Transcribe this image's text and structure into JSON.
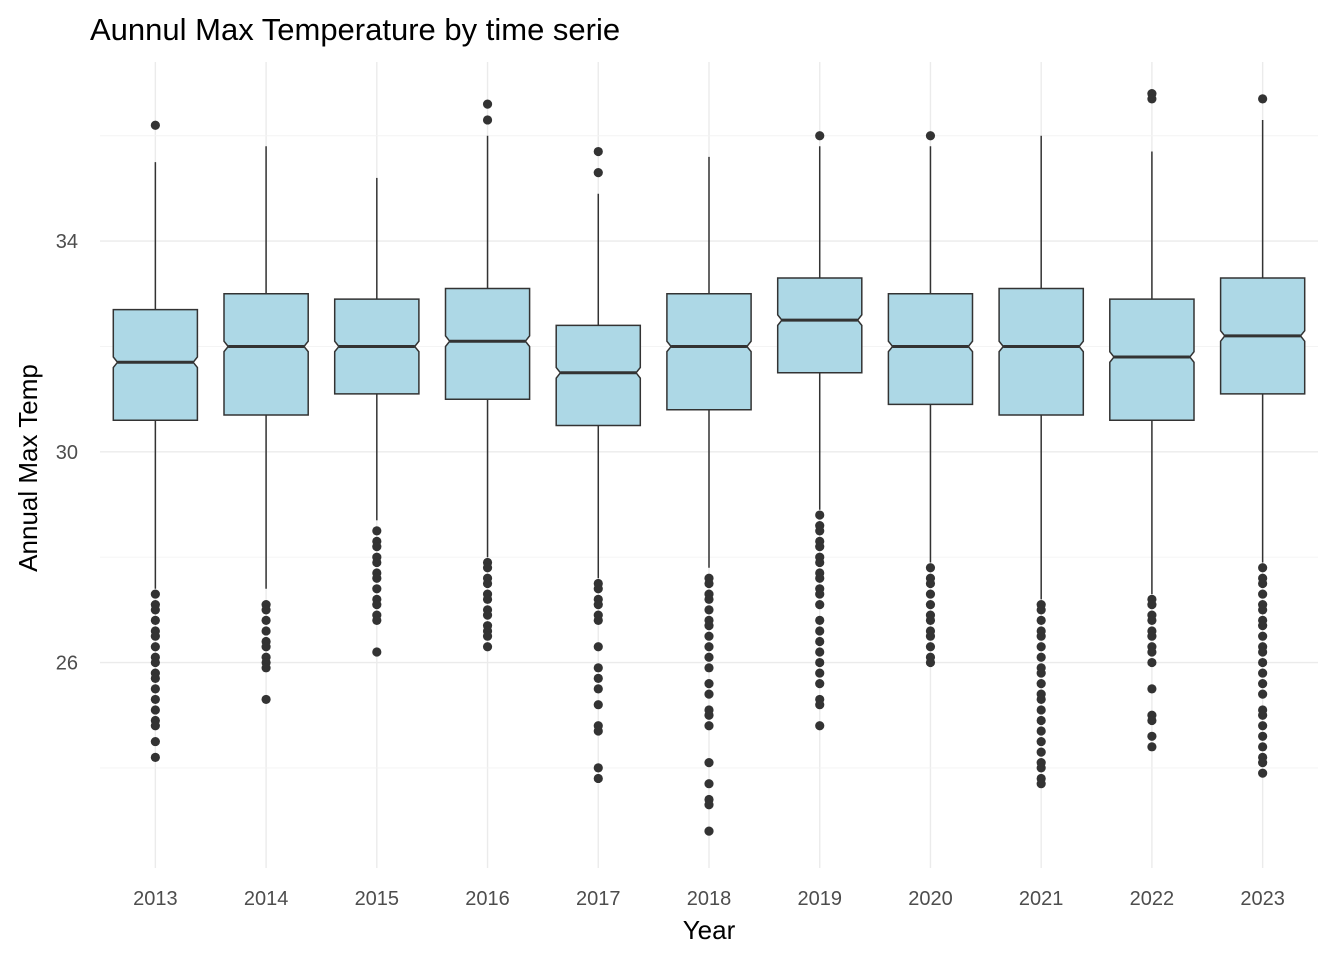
{
  "chart_data": {
    "type": "boxplot",
    "notched": true,
    "title": "Aunnul Max Temperature by time serie",
    "xlabel": "Year",
    "ylabel": "Annual Max Temp",
    "categories": [
      "2013",
      "2014",
      "2015",
      "2016",
      "2017",
      "2018",
      "2019",
      "2020",
      "2021",
      "2022",
      "2023"
    ],
    "y_ticks": [
      26,
      30,
      34
    ],
    "ylim": [
      22.1,
      37.4
    ],
    "grid": true,
    "legend": "none",
    "colors": {
      "box_fill": "#add8e6",
      "box_stroke": "#333333",
      "outlier": "#333333",
      "grid": "#ebebeb"
    },
    "boxes": [
      {
        "year": "2013",
        "lower_whisker": 27.4,
        "q1": 30.6,
        "median": 31.7,
        "q3": 32.7,
        "upper_whisker": 35.5,
        "notch_low": 31.6,
        "notch_high": 31.8,
        "outliers": [
          36.2,
          27.3,
          27.1,
          27.0,
          26.8,
          26.6,
          26.5,
          26.3,
          26.1,
          26.0,
          25.8,
          25.7,
          25.5,
          25.3,
          25.1,
          24.9,
          24.8,
          24.5,
          24.2
        ]
      },
      {
        "year": "2014",
        "lower_whisker": 27.4,
        "q1": 30.7,
        "median": 32.0,
        "q3": 33.0,
        "upper_whisker": 35.8,
        "notch_low": 31.9,
        "notch_high": 32.1,
        "outliers": [
          27.1,
          27.0,
          26.8,
          26.6,
          26.4,
          26.3,
          26.1,
          26.0,
          25.9,
          25.3
        ]
      },
      {
        "year": "2015",
        "lower_whisker": 28.7,
        "q1": 31.1,
        "median": 32.0,
        "q3": 32.9,
        "upper_whisker": 35.2,
        "notch_low": 31.9,
        "notch_high": 32.1,
        "outliers": [
          28.5,
          28.3,
          28.2,
          28.0,
          27.9,
          27.7,
          27.6,
          27.4,
          27.2,
          27.1,
          26.9,
          26.8,
          26.2
        ]
      },
      {
        "year": "2016",
        "lower_whisker": 28.0,
        "q1": 31.0,
        "median": 32.1,
        "q3": 33.1,
        "upper_whisker": 36.0,
        "notch_low": 32.0,
        "notch_high": 32.2,
        "outliers": [
          36.6,
          36.3,
          27.9,
          27.8,
          27.6,
          27.5,
          27.3,
          27.2,
          27.0,
          26.9,
          26.7,
          26.6,
          26.5,
          26.3
        ]
      },
      {
        "year": "2017",
        "lower_whisker": 27.6,
        "q1": 30.5,
        "median": 31.5,
        "q3": 32.4,
        "upper_whisker": 34.9,
        "notch_low": 31.4,
        "notch_high": 31.6,
        "outliers": [
          35.7,
          35.3,
          27.5,
          27.4,
          27.2,
          27.1,
          26.9,
          26.8,
          26.3,
          25.9,
          25.7,
          25.5,
          25.2,
          24.8,
          24.7,
          24.0,
          23.8
        ]
      },
      {
        "year": "2018",
        "lower_whisker": 27.8,
        "q1": 30.8,
        "median": 32.0,
        "q3": 33.0,
        "upper_whisker": 35.6,
        "notch_low": 31.9,
        "notch_high": 32.1,
        "outliers": [
          27.6,
          27.5,
          27.3,
          27.2,
          27.0,
          26.8,
          26.7,
          26.5,
          26.3,
          26.1,
          25.9,
          25.6,
          25.4,
          25.1,
          25.0,
          24.8,
          24.1,
          23.7,
          23.4,
          23.3,
          22.8
        ]
      },
      {
        "year": "2019",
        "lower_whisker": 28.9,
        "q1": 31.5,
        "median": 32.5,
        "q3": 33.3,
        "upper_whisker": 35.8,
        "notch_low": 32.4,
        "notch_high": 32.6,
        "outliers": [
          36.0,
          28.8,
          28.6,
          28.5,
          28.3,
          28.2,
          28.0,
          27.9,
          27.7,
          27.6,
          27.4,
          27.3,
          27.1,
          26.8,
          26.6,
          26.4,
          26.2,
          26.0,
          25.8,
          25.6,
          25.3,
          25.2,
          24.8
        ]
      },
      {
        "year": "2020",
        "lower_whisker": 27.9,
        "q1": 30.9,
        "median": 32.0,
        "q3": 33.0,
        "upper_whisker": 35.8,
        "notch_low": 31.9,
        "notch_high": 32.1,
        "outliers": [
          36.0,
          27.8,
          27.6,
          27.5,
          27.3,
          27.1,
          26.9,
          26.8,
          26.6,
          26.5,
          26.3,
          26.1,
          26.0
        ]
      },
      {
        "year": "2021",
        "lower_whisker": 27.2,
        "q1": 30.7,
        "median": 32.0,
        "q3": 33.1,
        "upper_whisker": 36.0,
        "notch_low": 31.9,
        "notch_high": 32.1,
        "outliers": [
          27.1,
          27.0,
          26.8,
          26.6,
          26.5,
          26.3,
          26.1,
          25.9,
          25.8,
          25.6,
          25.4,
          25.3,
          25.1,
          24.9,
          24.7,
          24.5,
          24.3,
          24.1,
          24.0,
          23.8,
          23.7
        ]
      },
      {
        "year": "2022",
        "lower_whisker": 27.3,
        "q1": 30.6,
        "median": 31.8,
        "q3": 32.9,
        "upper_whisker": 35.7,
        "notch_low": 31.7,
        "notch_high": 31.9,
        "outliers": [
          36.8,
          36.7,
          27.2,
          27.1,
          26.9,
          26.8,
          26.6,
          26.5,
          26.3,
          26.2,
          26.0,
          25.5,
          25.0,
          24.9,
          24.6,
          24.4
        ]
      },
      {
        "year": "2023",
        "lower_whisker": 27.9,
        "q1": 31.1,
        "median": 32.2,
        "q3": 33.3,
        "upper_whisker": 36.3,
        "notch_low": 32.1,
        "notch_high": 32.3,
        "outliers": [
          36.7,
          27.8,
          27.6,
          27.5,
          27.3,
          27.1,
          27.0,
          26.8,
          26.7,
          26.5,
          26.3,
          26.2,
          26.0,
          25.8,
          25.6,
          25.4,
          25.1,
          25.0,
          24.8,
          24.6,
          24.4,
          24.2,
          24.1,
          23.9
        ]
      }
    ]
  }
}
